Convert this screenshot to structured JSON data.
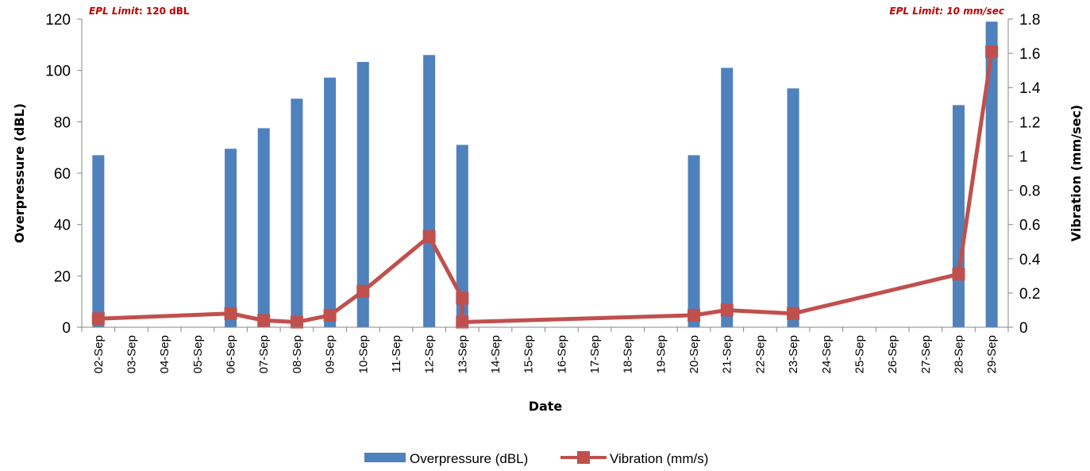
{
  "chart_data": {
    "type": "bar+line",
    "categories": [
      "02-Sep",
      "03-Sep",
      "04-Sep",
      "05-Sep",
      "06-Sep",
      "07-Sep",
      "08-Sep",
      "09-Sep",
      "10-Sep",
      "11-Sep",
      "12-Sep",
      "13-Sep",
      "14-Sep",
      "15-Sep",
      "16-Sep",
      "17-Sep",
      "18-Sep",
      "19-Sep",
      "20-Sep",
      "21-Sep",
      "22-Sep",
      "23-Sep",
      "24-Sep",
      "25-Sep",
      "26-Sep",
      "27-Sep",
      "28-Sep",
      "29-Sep"
    ],
    "xlabel": "Date",
    "ylabel_left": "Overpressure (dBL)",
    "ylabel_right": "Vibration (mm/sec)",
    "ylim_left": [
      0,
      120
    ],
    "ylim_right": [
      0,
      1.8
    ],
    "yticks_left": [
      "0",
      "20",
      "40",
      "60",
      "80",
      "100",
      "120"
    ],
    "yticks_right": [
      "0",
      "0.2",
      "0.4",
      "0.6",
      "0.8",
      "1",
      "1.2",
      "1.4",
      "1.6",
      "1.8"
    ],
    "annotation_left": {
      "prefix": "EPL Limit",
      "suffix": ": 120 dBL"
    },
    "annotation_right": "EPL Limit: 10 mm/sec",
    "grid": false,
    "legend_position": "bottom",
    "series": [
      {
        "name": "Overpressure (dBL)",
        "type": "bar",
        "axis": "left",
        "color": "#4f81bd",
        "points": [
          {
            "x": "02-Sep",
            "y": 67
          },
          {
            "x": "06-Sep",
            "y": 69.5
          },
          {
            "x": "07-Sep",
            "y": 77.5
          },
          {
            "x": "08-Sep",
            "y": 89
          },
          {
            "x": "09-Sep",
            "y": 97.2
          },
          {
            "x": "10-Sep",
            "y": 103.3
          },
          {
            "x": "12-Sep",
            "y": 106
          },
          {
            "x": "13-Sep",
            "y": 71
          },
          {
            "x": "20-Sep",
            "y": 67
          },
          {
            "x": "21-Sep",
            "y": 101
          },
          {
            "x": "23-Sep",
            "y": 93
          },
          {
            "x": "28-Sep",
            "y": 86.5
          },
          {
            "x": "29-Sep",
            "y": 119
          }
        ]
      },
      {
        "name": "Vibration (mm/s)",
        "type": "line",
        "axis": "right",
        "color": "#c0504d",
        "points": [
          {
            "x": "02-Sep",
            "y": 0.05
          },
          {
            "x": "06-Sep",
            "y": 0.08
          },
          {
            "x": "07-Sep",
            "y": 0.04
          },
          {
            "x": "08-Sep",
            "y": 0.03
          },
          {
            "x": "09-Sep",
            "y": 0.07
          },
          {
            "x": "10-Sep",
            "y": 0.21
          },
          {
            "x": "12-Sep",
            "y": 0.53
          },
          {
            "x": "13-Sep",
            "y": 0.17
          },
          {
            "x": "13-Sep",
            "y": 0.03
          },
          {
            "x": "20-Sep",
            "y": 0.07
          },
          {
            "x": "21-Sep",
            "y": 0.1
          },
          {
            "x": "23-Sep",
            "y": 0.08
          },
          {
            "x": "28-Sep",
            "y": 0.31
          },
          {
            "x": "29-Sep",
            "y": 1.61
          }
        ]
      }
    ]
  }
}
